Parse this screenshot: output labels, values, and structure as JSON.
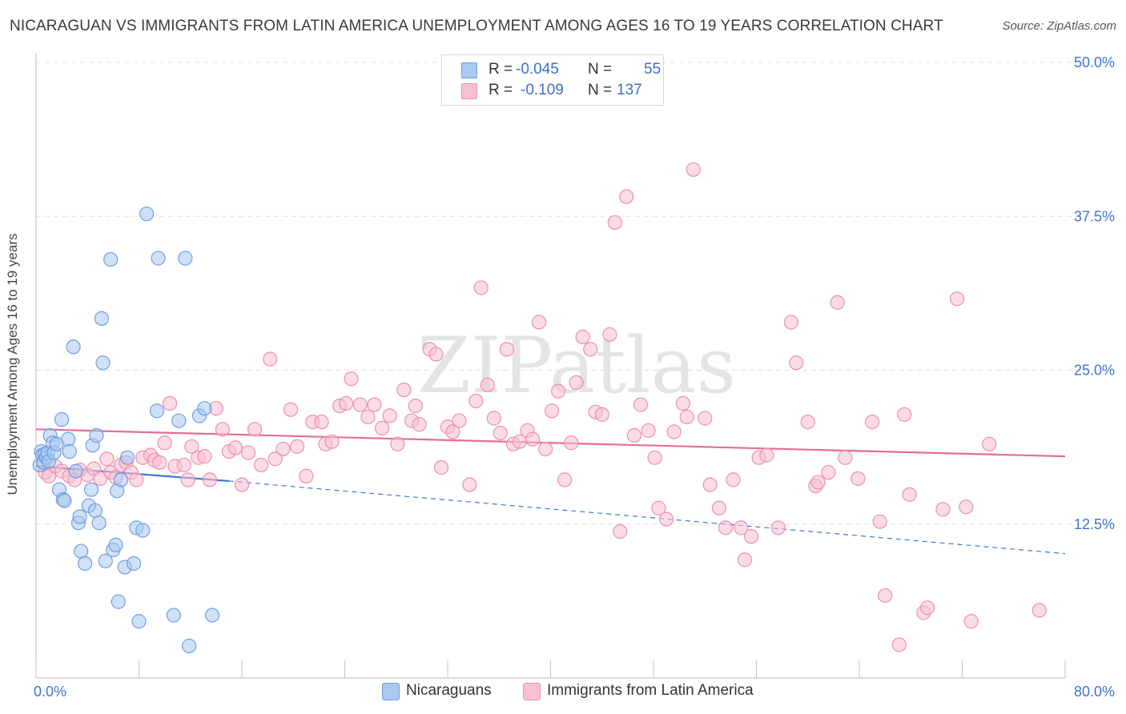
{
  "title": "NICARAGUAN VS IMMIGRANTS FROM LATIN AMERICA UNEMPLOYMENT AMONG AGES 16 TO 19 YEARS CORRELATION CHART",
  "source": "Source: ZipAtlas.com",
  "watermark": "ZIPatlas",
  "legend": {
    "rows": [
      {
        "r_label": "R =",
        "r_value": "-0.045",
        "n_label": "N =",
        "n_value": "55"
      },
      {
        "r_label": "R =",
        "r_value": "-0.109",
        "n_label": "N =",
        "n_value": "137"
      }
    ]
  },
  "bottom_legend": [
    "Nicaraguans",
    "Immigrants from Latin America"
  ],
  "colors": {
    "blue_fill": "#aac8f0",
    "blue_stroke": "#6f9fde",
    "blue_line": "#3a78d2",
    "pink_fill": "#f7c0d2",
    "pink_stroke": "#ec8fb0",
    "pink_line": "#e46d98",
    "axis_text": "#3f74cc",
    "grid": "#e2e2e2"
  },
  "chart_data": {
    "type": "scatter",
    "title": "NICARAGUAN VS IMMIGRANTS FROM LATIN AMERICA UNEMPLOYMENT AMONG AGES 16 TO 19 YEARS CORRELATION CHART",
    "xlabel": "",
    "ylabel": "Unemployment Among Ages 16 to 19 years",
    "xlim": [
      0,
      80
    ],
    "ylim": [
      0,
      50
    ],
    "x_tick_labels": [
      "0.0%",
      "80.0%"
    ],
    "y_ticks": [
      12.5,
      25.0,
      37.5,
      50.0
    ],
    "y_tick_labels": [
      "12.5%",
      "25.0%",
      "37.5%",
      "50.0%"
    ],
    "grid": true,
    "legend_position": "top-center",
    "series": [
      {
        "name": "Nicaraguans",
        "r": -0.045,
        "n": 55,
        "trend": {
          "x0": 0,
          "y0": 17.2,
          "x1": 15,
          "y1": 16.0,
          "dashed_to_x": 80,
          "dashed_to_y": 10.1
        },
        "points": [
          [
            0.3,
            17.3
          ],
          [
            0.4,
            18.4
          ],
          [
            0.5,
            18.1
          ],
          [
            0.6,
            17.5
          ],
          [
            0.7,
            18.2
          ],
          [
            0.8,
            17.9
          ],
          [
            0.9,
            18.3
          ],
          [
            1.0,
            17.6
          ],
          [
            1.1,
            19.7
          ],
          [
            1.3,
            19.1
          ],
          [
            1.4,
            18.3
          ],
          [
            1.6,
            19.0
          ],
          [
            1.8,
            15.3
          ],
          [
            2.0,
            21.0
          ],
          [
            2.1,
            14.5
          ],
          [
            2.2,
            14.4
          ],
          [
            2.5,
            19.4
          ],
          [
            2.6,
            18.4
          ],
          [
            2.9,
            26.9
          ],
          [
            3.1,
            16.8
          ],
          [
            3.3,
            12.6
          ],
          [
            3.4,
            13.1
          ],
          [
            3.5,
            10.3
          ],
          [
            3.8,
            9.3
          ],
          [
            4.1,
            14.0
          ],
          [
            4.3,
            15.3
          ],
          [
            4.4,
            18.9
          ],
          [
            4.6,
            13.6
          ],
          [
            4.7,
            19.7
          ],
          [
            4.9,
            12.6
          ],
          [
            5.1,
            29.2
          ],
          [
            5.2,
            25.6
          ],
          [
            5.4,
            9.5
          ],
          [
            5.8,
            34.0
          ],
          [
            6.0,
            10.4
          ],
          [
            6.2,
            10.8
          ],
          [
            6.3,
            15.2
          ],
          [
            6.4,
            6.2
          ],
          [
            6.6,
            16.1
          ],
          [
            6.9,
            9.0
          ],
          [
            7.1,
            17.9
          ],
          [
            7.6,
            9.3
          ],
          [
            7.8,
            12.2
          ],
          [
            8.0,
            4.6
          ],
          [
            8.3,
            12.0
          ],
          [
            8.6,
            37.7
          ],
          [
            9.4,
            21.7
          ],
          [
            9.5,
            34.1
          ],
          [
            10.7,
            5.1
          ],
          [
            11.1,
            20.9
          ],
          [
            11.6,
            34.1
          ],
          [
            11.9,
            2.6
          ],
          [
            12.7,
            21.3
          ],
          [
            13.1,
            21.9
          ],
          [
            13.7,
            5.1
          ]
        ]
      },
      {
        "name": "Immigrants from Latin America",
        "r": -0.109,
        "n": 137,
        "trend": {
          "x0": 0,
          "y0": 20.2,
          "x1": 80,
          "y1": 18.0
        },
        "points": [
          [
            0.7,
            16.7
          ],
          [
            1.0,
            16.4
          ],
          [
            1.5,
            17.2
          ],
          [
            2.0,
            16.8
          ],
          [
            2.6,
            16.4
          ],
          [
            3.0,
            16.1
          ],
          [
            3.4,
            16.9
          ],
          [
            4.0,
            16.5
          ],
          [
            4.5,
            17.0
          ],
          [
            5.0,
            16.2
          ],
          [
            5.5,
            17.8
          ],
          [
            5.8,
            16.7
          ],
          [
            6.2,
            16.3
          ],
          [
            6.6,
            17.3
          ],
          [
            7.0,
            17.5
          ],
          [
            7.4,
            16.7
          ],
          [
            7.8,
            16.1
          ],
          [
            8.3,
            17.9
          ],
          [
            8.9,
            18.1
          ],
          [
            9.2,
            17.7
          ],
          [
            9.6,
            17.5
          ],
          [
            10.0,
            19.1
          ],
          [
            10.4,
            22.3
          ],
          [
            10.8,
            17.2
          ],
          [
            11.5,
            17.3
          ],
          [
            11.8,
            16.1
          ],
          [
            12.1,
            18.8
          ],
          [
            12.6,
            17.9
          ],
          [
            13.1,
            18.0
          ],
          [
            13.5,
            16.1
          ],
          [
            14.0,
            21.9
          ],
          [
            14.5,
            20.2
          ],
          [
            15.0,
            18.4
          ],
          [
            15.5,
            18.7
          ],
          [
            16.0,
            15.7
          ],
          [
            16.5,
            18.3
          ],
          [
            17.0,
            20.2
          ],
          [
            17.5,
            17.3
          ],
          [
            18.2,
            25.9
          ],
          [
            18.6,
            17.8
          ],
          [
            19.2,
            18.6
          ],
          [
            19.8,
            21.8
          ],
          [
            20.3,
            18.8
          ],
          [
            21.0,
            16.4
          ],
          [
            21.5,
            20.8
          ],
          [
            22.2,
            20.8
          ],
          [
            22.5,
            19.0
          ],
          [
            23.0,
            19.2
          ],
          [
            23.6,
            22.1
          ],
          [
            24.1,
            22.3
          ],
          [
            24.5,
            24.3
          ],
          [
            25.2,
            22.2
          ],
          [
            25.8,
            21.2
          ],
          [
            26.3,
            22.2
          ],
          [
            26.9,
            20.3
          ],
          [
            27.5,
            21.3
          ],
          [
            28.1,
            19.0
          ],
          [
            28.6,
            23.4
          ],
          [
            29.2,
            20.9
          ],
          [
            29.5,
            22.1
          ],
          [
            29.8,
            20.6
          ],
          [
            30.6,
            26.7
          ],
          [
            31.1,
            26.3
          ],
          [
            31.5,
            17.1
          ],
          [
            32.0,
            20.4
          ],
          [
            32.4,
            20.0
          ],
          [
            32.9,
            20.9
          ],
          [
            33.7,
            15.7
          ],
          [
            34.2,
            22.5
          ],
          [
            34.6,
            31.7
          ],
          [
            35.1,
            23.8
          ],
          [
            35.6,
            21.1
          ],
          [
            36.1,
            19.9
          ],
          [
            36.6,
            26.7
          ],
          [
            37.1,
            19.0
          ],
          [
            37.6,
            19.2
          ],
          [
            38.2,
            20.1
          ],
          [
            38.6,
            19.4
          ],
          [
            39.1,
            28.9
          ],
          [
            39.6,
            18.6
          ],
          [
            40.1,
            21.7
          ],
          [
            40.6,
            23.3
          ],
          [
            41.1,
            16.1
          ],
          [
            41.6,
            19.1
          ],
          [
            42.0,
            24.0
          ],
          [
            42.5,
            27.7
          ],
          [
            43.1,
            26.7
          ],
          [
            43.5,
            21.6
          ],
          [
            44.0,
            21.4
          ],
          [
            44.6,
            27.9
          ],
          [
            45.0,
            37.0
          ],
          [
            45.4,
            11.9
          ],
          [
            45.9,
            39.1
          ],
          [
            46.5,
            19.7
          ],
          [
            47.0,
            22.2
          ],
          [
            47.6,
            20.1
          ],
          [
            48.1,
            17.9
          ],
          [
            48.4,
            13.8
          ],
          [
            49.0,
            12.9
          ],
          [
            49.6,
            20.0
          ],
          [
            50.3,
            22.3
          ],
          [
            50.6,
            21.2
          ],
          [
            51.1,
            41.3
          ],
          [
            52.0,
            21.1
          ],
          [
            52.4,
            15.7
          ],
          [
            53.1,
            13.8
          ],
          [
            53.6,
            12.2
          ],
          [
            54.2,
            16.1
          ],
          [
            54.8,
            12.2
          ],
          [
            55.1,
            9.6
          ],
          [
            55.6,
            11.5
          ],
          [
            56.2,
            17.9
          ],
          [
            56.8,
            18.1
          ],
          [
            57.7,
            12.2
          ],
          [
            58.7,
            28.9
          ],
          [
            59.1,
            25.6
          ],
          [
            60.0,
            20.8
          ],
          [
            60.6,
            15.6
          ],
          [
            60.8,
            15.9
          ],
          [
            61.6,
            16.7
          ],
          [
            62.3,
            30.5
          ],
          [
            62.9,
            17.9
          ],
          [
            63.9,
            16.2
          ],
          [
            65.0,
            20.8
          ],
          [
            65.6,
            12.7
          ],
          [
            66.0,
            6.7
          ],
          [
            67.1,
            2.7
          ],
          [
            67.5,
            21.4
          ],
          [
            67.9,
            14.9
          ],
          [
            69.0,
            5.3
          ],
          [
            69.3,
            5.7
          ],
          [
            70.5,
            13.7
          ],
          [
            71.6,
            30.8
          ],
          [
            72.3,
            13.9
          ],
          [
            72.7,
            4.6
          ],
          [
            74.1,
            19.0
          ],
          [
            78.0,
            5.5
          ]
        ]
      }
    ]
  }
}
